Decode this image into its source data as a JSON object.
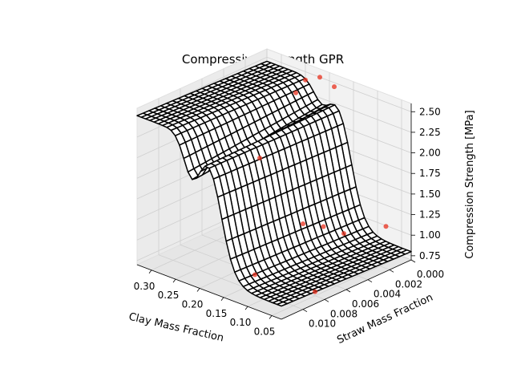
{
  "chart_data": {
    "type": "surface3d",
    "title": "Compressive Strength GPR",
    "xlabel": "Clay Mass Fraction",
    "ylabel": "Straw Mass Fraction",
    "zlabel": "Compression Strength [MPa]",
    "xlim": [
      0.03,
      0.33
    ],
    "ylim": [
      0.0,
      0.012
    ],
    "zlim": [
      0.7,
      2.6
    ],
    "x_ticks": [
      "0.30",
      "0.25",
      "0.20",
      "0.15",
      "0.10",
      "0.05"
    ],
    "y_ticks": [
      "0.000",
      "0.002",
      "0.004",
      "0.006",
      "0.008",
      "0.010"
    ],
    "z_ticks": [
      "0.75",
      "1.00",
      "1.25",
      "1.50",
      "1.75",
      "2.00",
      "2.25",
      "2.50"
    ],
    "grid": true,
    "surface": {
      "color": "#000000",
      "model": "step in clay fraction: ~2.45 MPa plateau for clay > 0.18, dip to ~1.9 MPa near 0.21, drop to ~0.8 MPa for clay < 0.10"
    },
    "scatter_points": [
      {
        "x": 0.27,
        "y": 0.0,
        "z": 2.2
      },
      {
        "x": 0.25,
        "y": 0.0,
        "z": 2.4
      },
      {
        "x": 0.22,
        "y": 0.0,
        "z": 2.5
      },
      {
        "x": 0.19,
        "y": 0.0,
        "z": 2.45
      },
      {
        "x": 0.21,
        "y": 0.006,
        "z": 1.9
      },
      {
        "x": 0.13,
        "y": 0.01,
        "z": 0.9
      },
      {
        "x": 0.12,
        "y": 0.006,
        "z": 1.3
      },
      {
        "x": 0.1,
        "y": 0.005,
        "z": 1.25
      },
      {
        "x": 0.08,
        "y": 0.004,
        "z": 1.15
      },
      {
        "x": 0.06,
        "y": 0.001,
        "z": 1.1
      },
      {
        "x": 0.05,
        "y": 0.008,
        "z": 0.75
      }
    ],
    "scatter_color": "#e8301e"
  }
}
